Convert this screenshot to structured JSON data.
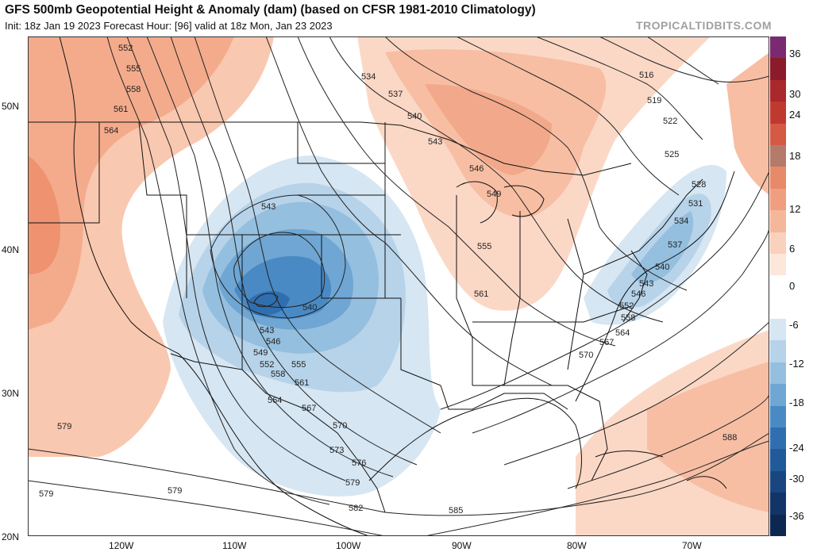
{
  "header": {
    "title": "GFS 500mb Geopotential Height & Anomaly (dam) (based on CFSR 1981-2010 Climatology)",
    "subtitle": "Init: 18z Jan 19 2023   Forecast Hour: [96]   valid at 18z Mon, Jan 23 2023",
    "brand": "TROPICALTIDBITS.COM"
  },
  "axes": {
    "latitude_labels": [
      "50N",
      "40N",
      "30N",
      "20N"
    ],
    "longitude_labels": [
      "120W",
      "110W",
      "100W",
      "90W",
      "80W",
      "70W"
    ]
  },
  "colorbar": {
    "labels": [
      "36",
      "30",
      "24",
      "18",
      "12",
      "6",
      "0",
      "-6",
      "-12",
      "-18",
      "-24",
      "-30",
      "-36"
    ],
    "colors": [
      "#7a2a70",
      "#8b1a2a",
      "#a8282c",
      "#c0392f",
      "#d45a44",
      "#b47a6a",
      "#e68a6a",
      "#ef9f80",
      "#f5b79a",
      "#fad1bd",
      "#fde6da",
      "#ffffff",
      "#ffffff",
      "#d6e6f2",
      "#b7d3e9",
      "#94bfdf",
      "#6fa6d3",
      "#4a8ac4",
      "#2f6fb0",
      "#215a99",
      "#1a4680",
      "#133466",
      "#0d2850"
    ]
  },
  "contour_labels": [
    "552",
    "555",
    "558",
    "561",
    "564",
    "534",
    "537",
    "540",
    "543",
    "546",
    "549",
    "555",
    "561",
    "516",
    "519",
    "522",
    "525",
    "528",
    "531",
    "534",
    "537",
    "540",
    "543",
    "546",
    "552",
    "558",
    "564",
    "567",
    "570",
    "543",
    "540",
    "543",
    "546",
    "549",
    "552",
    "555",
    "558",
    "561",
    "564",
    "567",
    "570",
    "573",
    "576",
    "579",
    "582",
    "585",
    "588",
    "579",
    "579",
    "579"
  ]
}
